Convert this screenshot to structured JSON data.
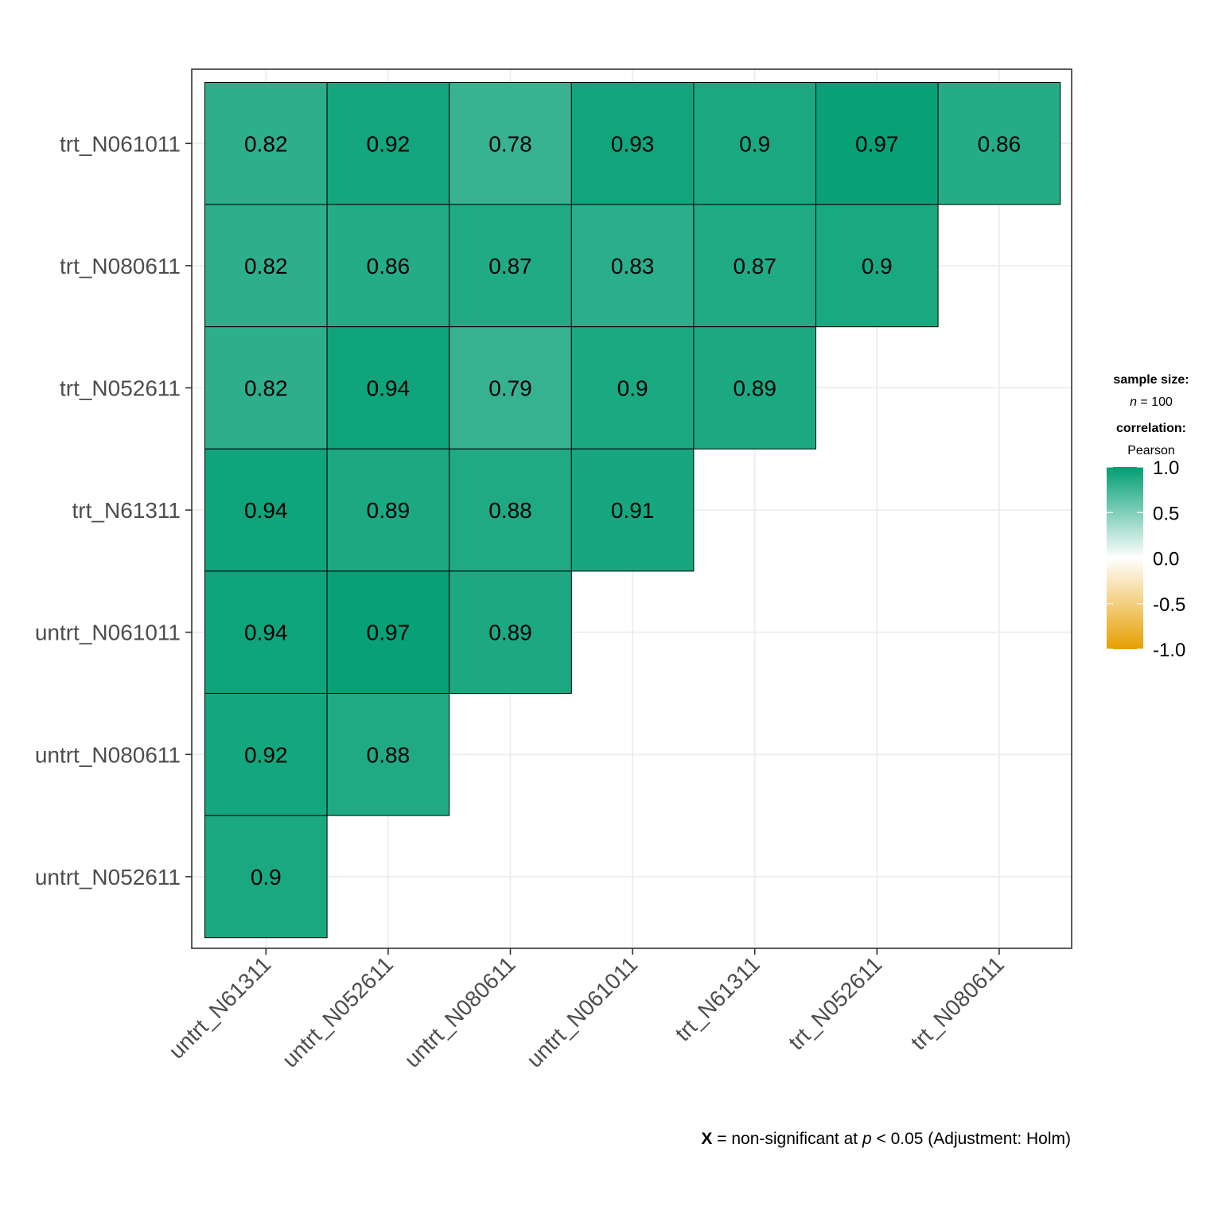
{
  "chart_data": {
    "type": "heatmap",
    "title": "",
    "x_categories": [
      "untrt_N61311",
      "untrt_N052611",
      "untrt_N080611",
      "untrt_N061011",
      "trt_N61311",
      "trt_N052611",
      "trt_N080611"
    ],
    "y_categories": [
      "trt_N061011",
      "trt_N080611",
      "trt_N052611",
      "trt_N61311",
      "untrt_N061011",
      "untrt_N080611",
      "untrt_N052611"
    ],
    "values": [
      [
        0.82,
        0.92,
        0.78,
        0.93,
        0.9,
        0.97,
        0.86
      ],
      [
        0.82,
        0.86,
        0.87,
        0.83,
        0.87,
        0.9,
        null
      ],
      [
        0.82,
        0.94,
        0.79,
        0.9,
        0.89,
        null,
        null
      ],
      [
        0.94,
        0.89,
        0.88,
        0.91,
        null,
        null,
        null
      ],
      [
        0.94,
        0.97,
        0.89,
        null,
        null,
        null,
        null
      ],
      [
        0.92,
        0.88,
        null,
        null,
        null,
        null,
        null
      ],
      [
        0.9,
        null,
        null,
        null,
        null,
        null,
        null
      ]
    ],
    "color_scale": {
      "low": "#E69F00",
      "mid": "#FFFFFF",
      "high": "#009E73",
      "limits": [
        -1.0,
        1.0
      ],
      "ticks": [
        "1.0",
        "0.5",
        "0.0",
        "-0.5",
        "-1.0"
      ]
    },
    "legend": {
      "sample_size_title": "sample size:",
      "sample_size_n": "n",
      "sample_size_value": " = 100",
      "correlation_title": "correlation:",
      "correlation_method": "Pearson"
    },
    "caption": {
      "bold": "X",
      "text1": " = non-significant at ",
      "italic": "p",
      "text2": " < 0.05 (Adjustment: Holm)"
    },
    "grid": true,
    "legend_position": "right"
  }
}
